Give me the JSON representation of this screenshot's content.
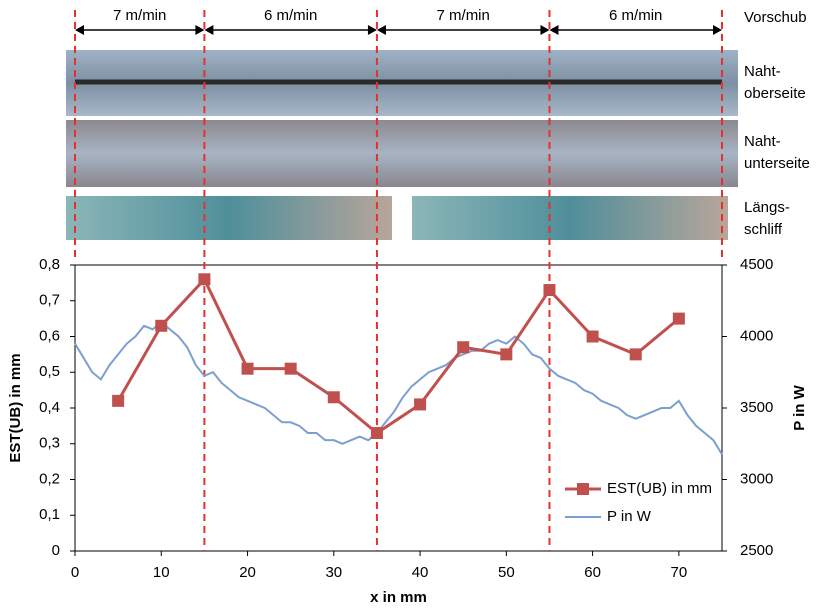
{
  "chart_data": {
    "type": "line",
    "xlabel": "x in mm",
    "ylabel": "EST(UB) in mm",
    "y2label": "P in W",
    "xlim": [
      0,
      75
    ],
    "xticks": [
      0,
      10,
      20,
      30,
      40,
      50,
      60,
      70
    ],
    "ylim": [
      0,
      0.8
    ],
    "yticks": [
      {
        "value": 0,
        "label": "0"
      },
      {
        "value": 0.1,
        "label": "0,1"
      },
      {
        "value": 0.2,
        "label": "0,2"
      },
      {
        "value": 0.3,
        "label": "0,3"
      },
      {
        "value": 0.4,
        "label": "0,4"
      },
      {
        "value": 0.5,
        "label": "0,5"
      },
      {
        "value": 0.6,
        "label": "0,6"
      },
      {
        "value": 0.7,
        "label": "0,7"
      },
      {
        "value": 0.8,
        "label": "0,8"
      }
    ],
    "y2lim": [
      2500,
      4500
    ],
    "y2ticks": [
      2500,
      3000,
      3500,
      4000,
      4500
    ],
    "legend": "lower right",
    "series": [
      {
        "name": "EST(UB) in mm",
        "color": "#c0504d",
        "marker": "square",
        "x": [
          5,
          10,
          15,
          20,
          25,
          30,
          35,
          40,
          45,
          50,
          55,
          60,
          65,
          70
        ],
        "values": [
          0.42,
          0.63,
          0.76,
          0.51,
          0.51,
          0.43,
          0.33,
          0.41,
          0.57,
          0.55,
          0.73,
          0.6,
          0.55,
          0.65
        ]
      },
      {
        "name": "P in W",
        "color": "#7ba0cf",
        "axis": "y2",
        "x": [
          0,
          1,
          2,
          3,
          4,
          5,
          6,
          7,
          8,
          9,
          10,
          11,
          12,
          13,
          14,
          15,
          16,
          17,
          18,
          19,
          20,
          21,
          22,
          23,
          24,
          25,
          26,
          27,
          28,
          29,
          30,
          31,
          32,
          33,
          34,
          35,
          36,
          37,
          38,
          39,
          40,
          41,
          42,
          43,
          44,
          45,
          46,
          47,
          48,
          49,
          50,
          51,
          52,
          53,
          54,
          55,
          56,
          57,
          58,
          59,
          60,
          61,
          62,
          63,
          64,
          65,
          66,
          67,
          68,
          69,
          70,
          71,
          72,
          73,
          74,
          75
        ],
        "values": [
          3950,
          3850,
          3750,
          3700,
          3800,
          3875,
          3950,
          4000,
          4075,
          4050,
          4100,
          4050,
          4000,
          3925,
          3800,
          3725,
          3750,
          3675,
          3625,
          3575,
          3550,
          3525,
          3500,
          3450,
          3400,
          3400,
          3375,
          3325,
          3325,
          3275,
          3275,
          3250,
          3275,
          3300,
          3275,
          3325,
          3400,
          3475,
          3575,
          3650,
          3700,
          3750,
          3775,
          3800,
          3850,
          3875,
          3900,
          3900,
          3950,
          3975,
          3950,
          4000,
          3950,
          3875,
          3850,
          3775,
          3725,
          3700,
          3675,
          3625,
          3600,
          3550,
          3525,
          3500,
          3450,
          3425,
          3450,
          3475,
          3500,
          3500,
          3550,
          3450,
          3375,
          3325,
          3275,
          3175
        ]
      }
    ],
    "speed_title": "Vorschub",
    "speed_segments": [
      {
        "label": "7 m/min",
        "from": 0,
        "to": 15
      },
      {
        "label": "6 m/min",
        "from": 15,
        "to": 35
      },
      {
        "label": "7 m/min",
        "from": 35,
        "to": 55
      },
      {
        "label": "6 m/min",
        "from": 55,
        "to": 75
      }
    ],
    "image_labels": [
      [
        "Naht-",
        "oberseite"
      ],
      [
        "Naht-",
        "unterseite"
      ],
      [
        "Längs-",
        "schliff"
      ]
    ]
  }
}
